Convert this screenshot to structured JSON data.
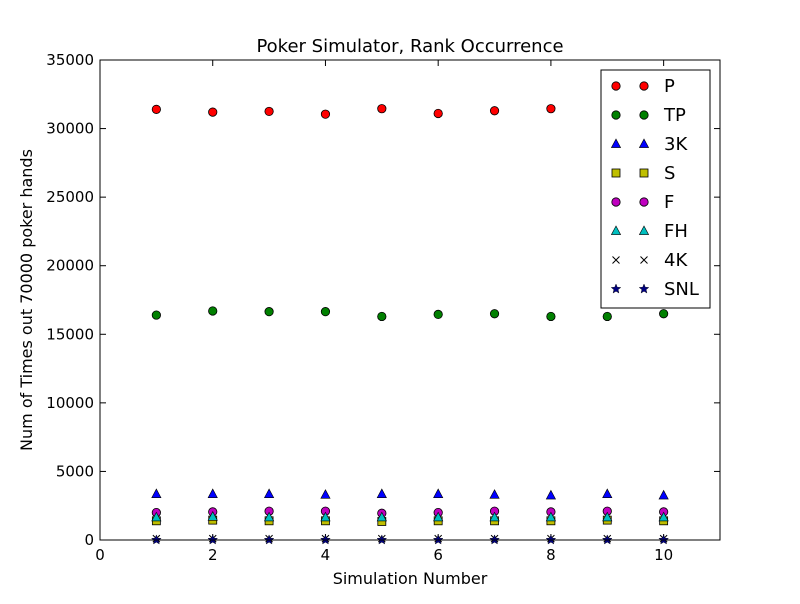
{
  "chart_data": {
    "type": "scatter",
    "title": "Poker Simulator, Rank Occurrence",
    "xlabel": "Simulation Number",
    "ylabel": "Num of Times out 70000 poker hands",
    "xlim": [
      0,
      11
    ],
    "ylim": [
      0,
      35000
    ],
    "xticks": [
      0,
      2,
      4,
      6,
      8,
      10
    ],
    "yticks": [
      0,
      5000,
      10000,
      15000,
      20000,
      25000,
      30000,
      35000
    ],
    "grid": false,
    "legend_position": "top-right",
    "x": [
      1,
      2,
      3,
      4,
      5,
      6,
      7,
      8,
      9,
      10
    ],
    "series": [
      {
        "name": "P",
        "marker": "circle",
        "color": "#ff0000",
        "values": [
          31400,
          31200,
          31250,
          31050,
          31450,
          31100,
          31300,
          31450,
          null,
          null
        ]
      },
      {
        "name": "TP",
        "marker": "circle",
        "color": "#008000",
        "values": [
          16400,
          16700,
          16650,
          16650,
          16300,
          16450,
          16500,
          16300,
          16300,
          16500
        ]
      },
      {
        "name": "3K",
        "marker": "triangle",
        "color": "#0000ff",
        "values": [
          3350,
          3350,
          3350,
          3300,
          3350,
          3350,
          3300,
          3250,
          3350,
          3250
        ]
      },
      {
        "name": "S",
        "marker": "square",
        "color": "#bfbf00",
        "values": [
          1400,
          1450,
          1400,
          1400,
          1350,
          1400,
          1400,
          1400,
          1450,
          1400
        ]
      },
      {
        "name": "F",
        "marker": "circle",
        "color": "#bf00bf",
        "values": [
          2000,
          2050,
          2100,
          2100,
          1950,
          2000,
          2100,
          2050,
          2100,
          2050
        ]
      },
      {
        "name": "FH",
        "marker": "triangle",
        "color": "#00bfbf",
        "values": [
          1650,
          1700,
          1650,
          1650,
          1650,
          1650,
          1650,
          1650,
          1650,
          1650
        ]
      },
      {
        "name": "4K",
        "marker": "x",
        "color": "#000000",
        "values": [
          100,
          100,
          100,
          100,
          100,
          100,
          100,
          100,
          100,
          100
        ]
      },
      {
        "name": "SNL",
        "marker": "star",
        "color": "#000080",
        "values": [
          5,
          5,
          5,
          5,
          5,
          5,
          5,
          5,
          5,
          5
        ]
      }
    ]
  }
}
